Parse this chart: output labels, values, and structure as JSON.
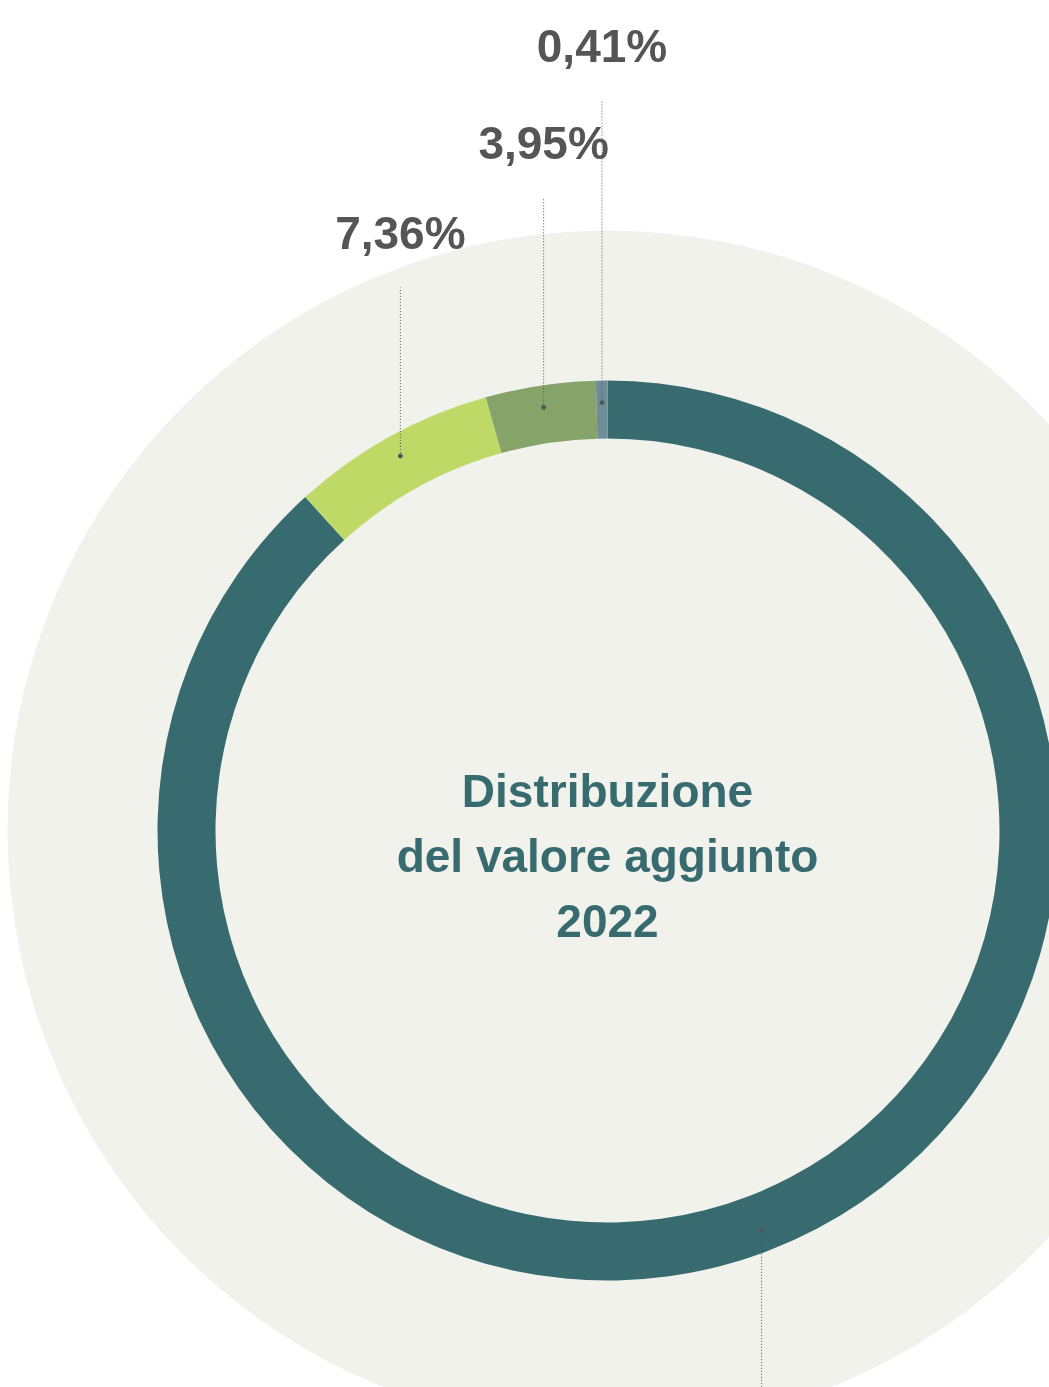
{
  "chart_data": {
    "type": "donut",
    "title": "Distribuzione\ndel valore aggiunto\n2022",
    "categories": [
      null,
      null,
      null,
      null
    ],
    "values": [
      88.28,
      7.36,
      3.95,
      0.41
    ],
    "colors": [
      "#386b6f",
      "#bfd966",
      "#86a36a",
      "#6e8d97"
    ],
    "value_labels": [
      null,
      "7,36%",
      "3,95%",
      "0,41%"
    ]
  }
}
